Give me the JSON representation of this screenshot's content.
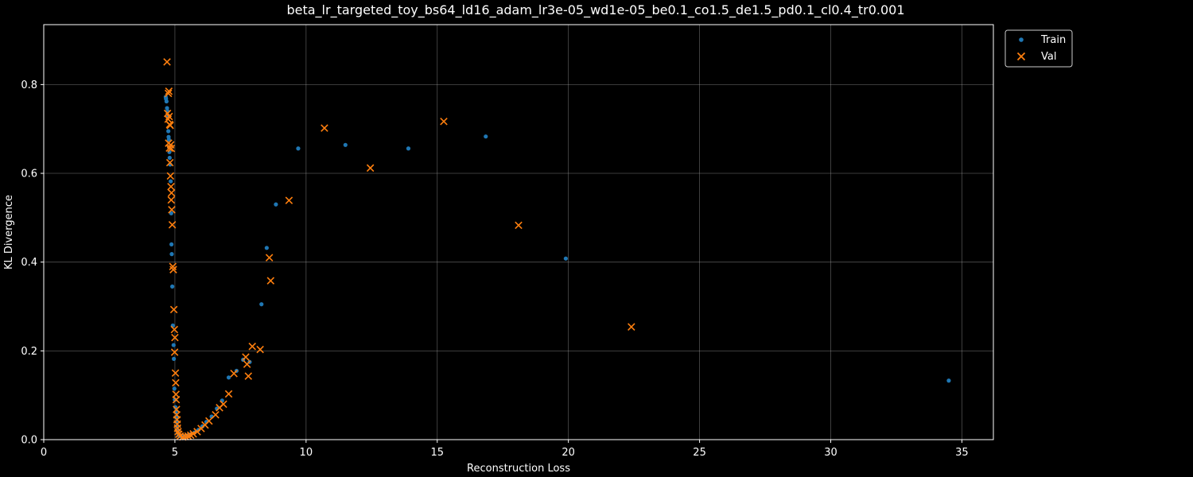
{
  "chart_data": {
    "type": "scatter",
    "title": "beta_lr_targeted_toy_bs64_ld16_adam_lr3e-05_wd1e-05_be0.1_co1.5_de1.5_pd0.1_cl0.4_tr0.001",
    "xlabel": "Reconstruction Loss",
    "ylabel": "KL Divergence",
    "xlim": [
      0,
      36.2
    ],
    "ylim": [
      0,
      0.935
    ],
    "xticks": [
      "0",
      "5",
      "10",
      "15",
      "20",
      "25",
      "30",
      "35"
    ],
    "yticks": [
      "0.0",
      "0.2",
      "0.4",
      "0.6",
      "0.8"
    ],
    "xtick_values": [
      0,
      5,
      10,
      15,
      20,
      25,
      30,
      35
    ],
    "ytick_values": [
      0,
      0.2,
      0.4,
      0.6,
      0.8
    ],
    "grid": true,
    "legend_position": "outside-upper-right",
    "series": [
      {
        "name": "Train",
        "marker": "circle",
        "color": "#1f77b4",
        "points": [
          [
            4.65,
            0.772
          ],
          [
            4.66,
            0.768
          ],
          [
            4.68,
            0.762
          ],
          [
            4.7,
            0.747
          ],
          [
            4.72,
            0.74
          ],
          [
            4.73,
            0.727
          ],
          [
            4.75,
            0.695
          ],
          [
            4.76,
            0.682
          ],
          [
            4.77,
            0.676
          ],
          [
            4.78,
            0.659
          ],
          [
            4.79,
            0.648
          ],
          [
            4.8,
            0.635
          ],
          [
            4.82,
            0.62
          ],
          [
            4.84,
            0.582
          ],
          [
            4.86,
            0.51
          ],
          [
            4.87,
            0.44
          ],
          [
            4.88,
            0.418
          ],
          [
            4.9,
            0.345
          ],
          [
            4.92,
            0.257
          ],
          [
            4.95,
            0.213
          ],
          [
            4.96,
            0.182
          ],
          [
            4.98,
            0.115
          ],
          [
            5.0,
            0.09
          ],
          [
            5.02,
            0.073
          ],
          [
            5.03,
            0.062
          ],
          [
            5.05,
            0.05
          ],
          [
            5.06,
            0.04
          ],
          [
            5.08,
            0.03
          ],
          [
            5.1,
            0.022
          ],
          [
            5.12,
            0.015
          ],
          [
            5.15,
            0.01
          ],
          [
            5.2,
            0.008
          ],
          [
            5.3,
            0.007
          ],
          [
            5.4,
            0.008
          ],
          [
            5.5,
            0.01
          ],
          [
            5.6,
            0.012
          ],
          [
            5.75,
            0.016
          ],
          [
            5.9,
            0.022
          ],
          [
            6.05,
            0.03
          ],
          [
            6.2,
            0.04
          ],
          [
            6.4,
            0.052
          ],
          [
            6.6,
            0.07
          ],
          [
            6.8,
            0.088
          ],
          [
            7.05,
            0.14
          ],
          [
            7.35,
            0.155
          ],
          [
            7.6,
            0.18
          ],
          [
            7.85,
            0.175
          ],
          [
            8.3,
            0.305
          ],
          [
            8.5,
            0.432
          ],
          [
            8.85,
            0.53
          ],
          [
            9.7,
            0.656
          ],
          [
            11.5,
            0.664
          ],
          [
            13.9,
            0.656
          ],
          [
            16.85,
            0.683
          ],
          [
            19.9,
            0.408
          ],
          [
            34.5,
            0.133
          ]
        ]
      },
      {
        "name": "Val",
        "marker": "x",
        "color": "#ff7f0e",
        "points": [
          [
            4.7,
            0.851
          ],
          [
            4.75,
            0.78
          ],
          [
            4.77,
            0.785
          ],
          [
            4.72,
            0.735
          ],
          [
            4.78,
            0.728
          ],
          [
            4.74,
            0.722
          ],
          [
            4.8,
            0.71
          ],
          [
            4.82,
            0.708
          ],
          [
            4.76,
            0.668
          ],
          [
            4.84,
            0.664
          ],
          [
            4.79,
            0.657
          ],
          [
            4.86,
            0.656
          ],
          [
            4.81,
            0.624
          ],
          [
            4.83,
            0.594
          ],
          [
            4.85,
            0.57
          ],
          [
            4.87,
            0.556
          ],
          [
            4.86,
            0.54
          ],
          [
            4.88,
            0.518
          ],
          [
            4.9,
            0.484
          ],
          [
            4.92,
            0.39
          ],
          [
            4.94,
            0.383
          ],
          [
            4.96,
            0.293
          ],
          [
            4.98,
            0.248
          ],
          [
            5.0,
            0.23
          ],
          [
            4.99,
            0.197
          ],
          [
            5.02,
            0.15
          ],
          [
            5.03,
            0.128
          ],
          [
            5.04,
            0.102
          ],
          [
            5.05,
            0.09
          ],
          [
            5.06,
            0.068
          ],
          [
            5.07,
            0.056
          ],
          [
            5.08,
            0.045
          ],
          [
            5.09,
            0.035
          ],
          [
            5.1,
            0.026
          ],
          [
            5.12,
            0.018
          ],
          [
            5.15,
            0.012
          ],
          [
            5.2,
            0.008
          ],
          [
            5.3,
            0.006
          ],
          [
            5.4,
            0.007
          ],
          [
            5.5,
            0.008
          ],
          [
            5.6,
            0.01
          ],
          [
            5.7,
            0.013
          ],
          [
            5.85,
            0.018
          ],
          [
            6.0,
            0.025
          ],
          [
            6.15,
            0.033
          ],
          [
            6.3,
            0.042
          ],
          [
            6.55,
            0.056
          ],
          [
            6.7,
            0.072
          ],
          [
            6.85,
            0.08
          ],
          [
            7.05,
            0.103
          ],
          [
            7.25,
            0.149
          ],
          [
            7.7,
            0.186
          ],
          [
            7.75,
            0.17
          ],
          [
            7.8,
            0.143
          ],
          [
            7.95,
            0.21
          ],
          [
            8.25,
            0.203
          ],
          [
            8.6,
            0.41
          ],
          [
            8.65,
            0.358
          ],
          [
            9.35,
            0.539
          ],
          [
            10.7,
            0.702
          ],
          [
            12.45,
            0.612
          ],
          [
            15.25,
            0.717
          ],
          [
            18.1,
            0.483
          ],
          [
            22.4,
            0.254
          ]
        ]
      }
    ]
  }
}
